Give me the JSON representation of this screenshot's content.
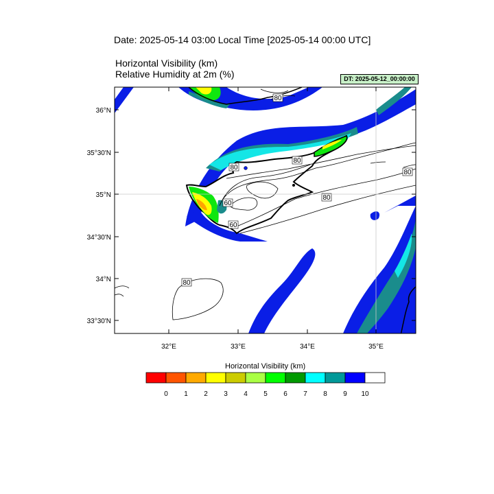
{
  "header": {
    "date_line": "Date: 2025-05-14  03:00 Local Time [2025-05-14  00:00 UTC]",
    "line1": "Horizontal Visibility   (km)",
    "line2": "Relative Humidity at 2m   (%)",
    "dt_badge": "DT: 2025-05-12_00:00:00"
  },
  "map": {
    "lon_labels": [
      "32°E",
      "33°E",
      "34°E",
      "35°E"
    ],
    "lat_labels": [
      "36°N",
      "35°30'N",
      "35°N",
      "34°30'N",
      "34°N",
      "33°30'N"
    ],
    "contour_labels": [
      "80",
      "80",
      "80",
      "60",
      "60",
      "80",
      "80",
      "80"
    ],
    "colors": {
      "blue": "#0a1ee6",
      "teal": "#1a8c8c",
      "cyan": "#14e6e6",
      "green": "#0fe60f",
      "darkgreen": "#0a8c0a",
      "yellow": "#ffff00",
      "orange": "#ffa500"
    }
  },
  "colorbar": {
    "title": "Horizontal Visibility  (km)",
    "colors": [
      "#ff0000",
      "#ff5500",
      "#ffaa00",
      "#ffff00",
      "#cccc00",
      "#aaff44",
      "#00ff00",
      "#009900",
      "#00ffff",
      "#009999",
      "#0000ff",
      "#ffffff"
    ],
    "ticks": [
      "0",
      "1",
      "2",
      "3",
      "4",
      "5",
      "6",
      "7",
      "8",
      "9",
      "10"
    ]
  }
}
